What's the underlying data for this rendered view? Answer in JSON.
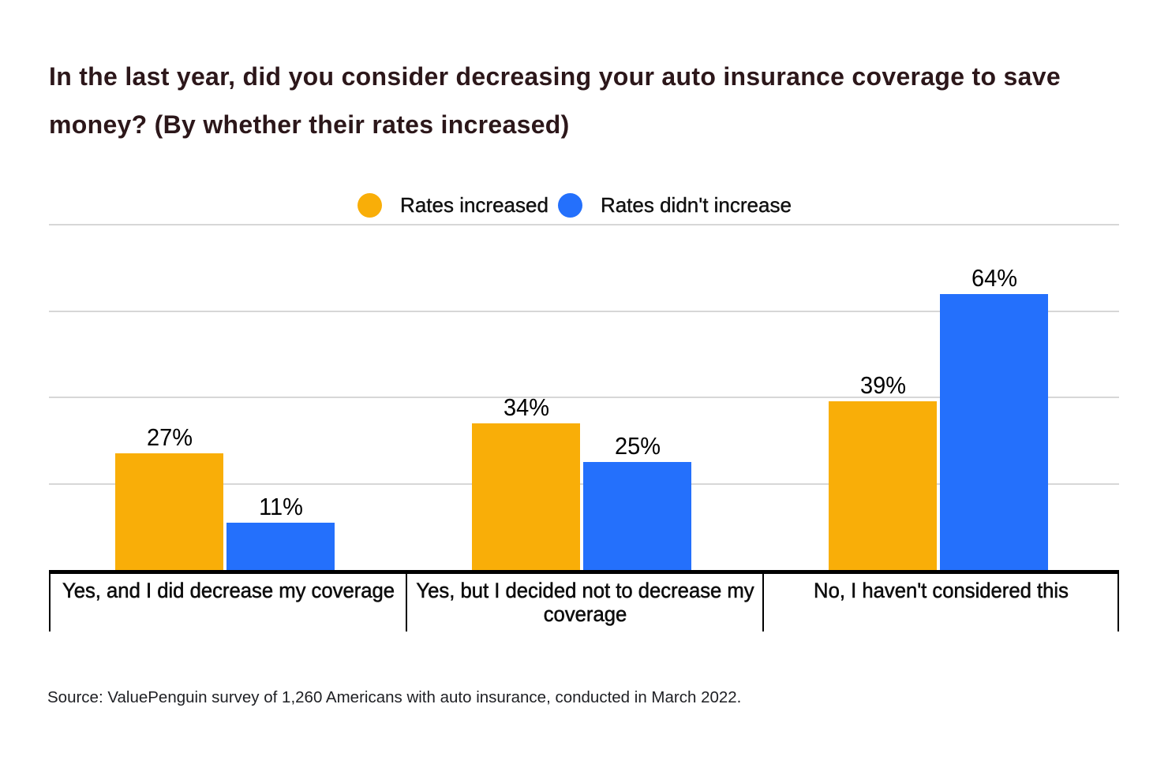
{
  "page": {
    "background": "#ffffff"
  },
  "title": {
    "text": "In the last year, did you consider decreasing your auto insurance coverage to save money? (By whether their rates increased)",
    "color": "#2c171a"
  },
  "legend": {
    "items": [
      {
        "label": "Rates increased",
        "color": "#f9ae08"
      },
      {
        "label": "Rates didn't increase",
        "color": "#2470fc"
      }
    ]
  },
  "source_note": "Source: ValuePenguin survey of 1,260 Americans with auto insurance, conducted in March 2022.",
  "chart_data": {
    "type": "bar",
    "title": "In the last year, did you consider decreasing your auto insurance coverage to save money? (By whether their rates increased)",
    "categories": [
      "Yes, and I did decrease my coverage",
      "Yes, but I decided not to decrease my coverage",
      "No, I haven't considered this"
    ],
    "series": [
      {
        "name": "Rates increased",
        "color": "#f9ae08",
        "values": [
          27,
          34,
          39
        ]
      },
      {
        "name": "Rates didn't increase",
        "color": "#2470fc",
        "values": [
          11,
          25,
          64
        ]
      }
    ],
    "value_suffix": "%",
    "xlabel": "",
    "ylabel": "",
    "ylim": [
      0,
      80
    ],
    "gridline_step": 20,
    "grid": true,
    "legend_position": "top"
  }
}
